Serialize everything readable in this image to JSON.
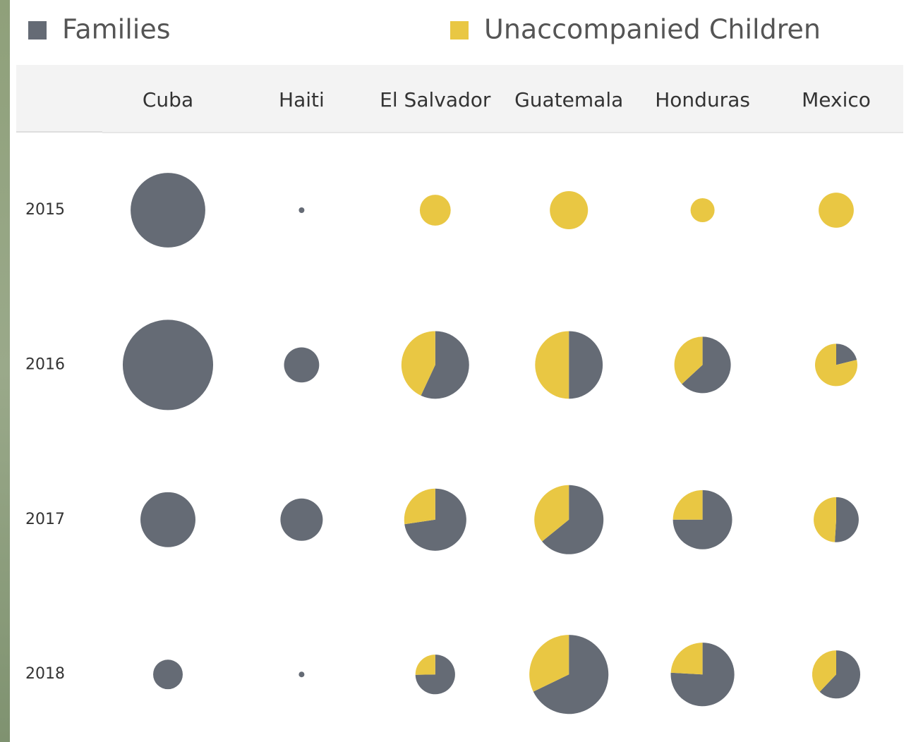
{
  "chart_data": {
    "type": "pie-grid",
    "categories": [
      "Cuba",
      "Haiti",
      "El Salvador",
      "Guatemala",
      "Honduras",
      "Mexico"
    ],
    "rows": [
      "2015",
      "2016",
      "2017",
      "2018"
    ],
    "series": [
      {
        "name": "Families",
        "color": "#656b75",
        "values": [
          [
            2800,
            16,
            0,
            0,
            0,
            0
          ],
          [
            4100,
            620,
            1310,
            1150,
            1010,
            190
          ],
          [
            1520,
            900,
            1410,
            1540,
            1320,
            520
          ],
          [
            440,
            16,
            590,
            2130,
            1540,
            720
          ]
        ]
      },
      {
        "name": "Unaccompanied Children",
        "color": "#e9c743",
        "values": [
          [
            0,
            0,
            480,
            730,
            290,
            620
          ],
          [
            0,
            0,
            990,
            1150,
            590,
            710
          ],
          [
            0,
            0,
            530,
            860,
            440,
            500
          ],
          [
            0,
            0,
            200,
            1010,
            490,
            440
          ]
        ]
      }
    ]
  }
}
